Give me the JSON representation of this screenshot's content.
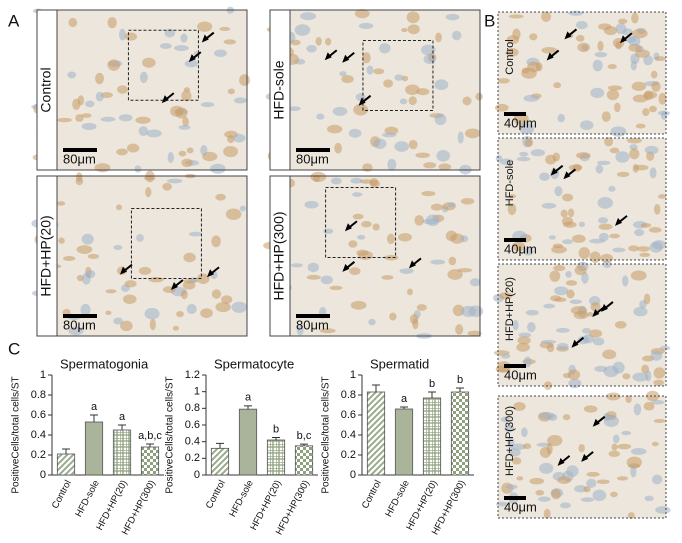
{
  "panel_a": {
    "letter": "A",
    "images": [
      {
        "label": "Control",
        "scale": "80μm"
      },
      {
        "label": "HFD-sole",
        "scale": "80μm"
      },
      {
        "label": "HFD+HP(20)",
        "scale": "80μm"
      },
      {
        "label": "HFD+HP(300)",
        "scale": "80μm"
      }
    ]
  },
  "panel_b": {
    "letter": "B",
    "images": [
      {
        "label": "Control",
        "scale": "40μm"
      },
      {
        "label": "HFD-sole",
        "scale": "40μm"
      },
      {
        "label": "HFD+HP(20)",
        "scale": "40μm"
      },
      {
        "label": "HFD+HP(300)",
        "scale": "40μm"
      }
    ]
  },
  "panel_c_letter": "C",
  "chart_data": [
    {
      "type": "bar",
      "title": "Spermatogonia",
      "y_label": "PositiveCells/total cells/ST",
      "categories": [
        "Control",
        "HFD-sole",
        "HFD+HP(20)",
        "HFD+HP(300)"
      ],
      "values": [
        0.21,
        0.53,
        0.45,
        0.28
      ],
      "errors": [
        0.05,
        0.07,
        0.05,
        0.03
      ],
      "annotations": [
        null,
        "a",
        "a",
        "a,b,c"
      ],
      "ylim": [
        0,
        1
      ],
      "yticks": [
        0,
        0.2,
        0.4,
        0.6,
        0.8,
        1
      ],
      "colors": [
        "#9aaa8c",
        "#a9b49a",
        "#8fa07f",
        "#8fa07f"
      ],
      "patterns": [
        "diagonal",
        "solid",
        "grid",
        "checker"
      ]
    },
    {
      "type": "bar",
      "title": "Spermatocyte",
      "y_label": "PositiveCells/total cells/ST",
      "categories": [
        "Control",
        "HFD-sole",
        "HFD+HP(20)",
        "HFD+HP(300)"
      ],
      "values": [
        0.32,
        0.79,
        0.42,
        0.35
      ],
      "errors": [
        0.06,
        0.04,
        0.03,
        0.02
      ],
      "annotations": [
        null,
        "a",
        "b",
        "b,c"
      ],
      "ylim": [
        0,
        1.2
      ],
      "yticks": [
        0,
        0.2,
        0.4,
        0.6,
        0.8,
        1,
        1.2
      ],
      "colors": [
        "#9aaa8c",
        "#a9b49a",
        "#8fa07f",
        "#8fa07f"
      ],
      "patterns": [
        "diagonal",
        "solid",
        "grid",
        "checker"
      ]
    },
    {
      "type": "bar",
      "title": "Spermatid",
      "y_label": "PositiveCells/total cells/ST",
      "categories": [
        "Control",
        "HFD-sole",
        "HFD+HP(20)",
        "HFD+HP(300)"
      ],
      "values": [
        0.83,
        0.66,
        0.77,
        0.83
      ],
      "errors": [
        0.07,
        0.02,
        0.06,
        0.04
      ],
      "annotations": [
        null,
        "a",
        "b",
        "b"
      ],
      "ylim": [
        0,
        1
      ],
      "yticks": [
        0,
        0.2,
        0.4,
        0.6,
        0.8,
        1
      ],
      "colors": [
        "#9aaa8c",
        "#a9b49a",
        "#8fa07f",
        "#8fa07f"
      ],
      "patterns": [
        "diagonal",
        "solid",
        "grid",
        "checker"
      ]
    }
  ]
}
